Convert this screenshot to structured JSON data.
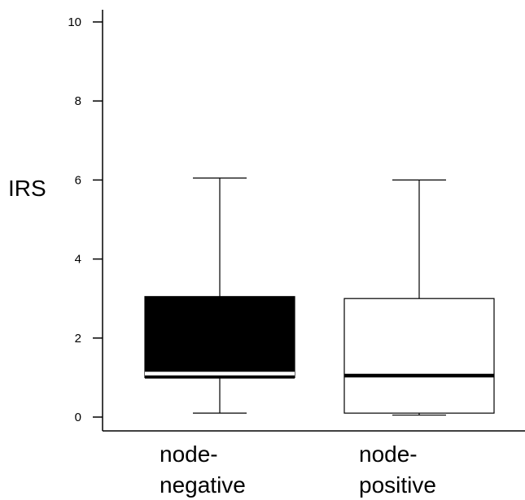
{
  "chart_data": {
    "type": "boxplot",
    "ylabel": "IRS",
    "ylim": [
      0,
      10
    ],
    "yticks": [
      0,
      2,
      4,
      6,
      8,
      10
    ],
    "categories": [
      [
        "node-",
        "negative"
      ],
      [
        "node-",
        "positive"
      ]
    ],
    "boxes": [
      {
        "whisker_low": 0.1,
        "q1": 1.0,
        "median": 1.1,
        "q3": 3.05,
        "whisker_high": 6.05,
        "fill": "#000000"
      },
      {
        "whisker_low": 0.05,
        "q1": 0.1,
        "median": 1.05,
        "q3": 3.0,
        "whisker_high": 6.0,
        "fill": "#ffffff"
      }
    ]
  }
}
